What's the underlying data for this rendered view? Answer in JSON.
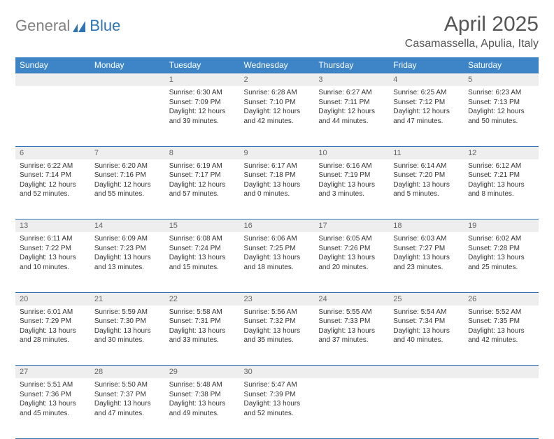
{
  "logo": {
    "gray": "General",
    "blue": "Blue"
  },
  "title": "April 2025",
  "location": "Casamassella, Apulia, Italy",
  "colors": {
    "header_bg": "#3d85c6",
    "header_border": "#2e74b5",
    "daynum_bg": "#eeeeee",
    "text": "#333333"
  },
  "day_headers": [
    "Sunday",
    "Monday",
    "Tuesday",
    "Wednesday",
    "Thursday",
    "Friday",
    "Saturday"
  ],
  "weeks": [
    {
      "nums": [
        "",
        "",
        "1",
        "2",
        "3",
        "4",
        "5"
      ],
      "cells": [
        null,
        null,
        {
          "sunrise": "Sunrise: 6:30 AM",
          "sunset": "Sunset: 7:09 PM",
          "daylight": "Daylight: 12 hours and 39 minutes."
        },
        {
          "sunrise": "Sunrise: 6:28 AM",
          "sunset": "Sunset: 7:10 PM",
          "daylight": "Daylight: 12 hours and 42 minutes."
        },
        {
          "sunrise": "Sunrise: 6:27 AM",
          "sunset": "Sunset: 7:11 PM",
          "daylight": "Daylight: 12 hours and 44 minutes."
        },
        {
          "sunrise": "Sunrise: 6:25 AM",
          "sunset": "Sunset: 7:12 PM",
          "daylight": "Daylight: 12 hours and 47 minutes."
        },
        {
          "sunrise": "Sunrise: 6:23 AM",
          "sunset": "Sunset: 7:13 PM",
          "daylight": "Daylight: 12 hours and 50 minutes."
        }
      ]
    },
    {
      "nums": [
        "6",
        "7",
        "8",
        "9",
        "10",
        "11",
        "12"
      ],
      "cells": [
        {
          "sunrise": "Sunrise: 6:22 AM",
          "sunset": "Sunset: 7:14 PM",
          "daylight": "Daylight: 12 hours and 52 minutes."
        },
        {
          "sunrise": "Sunrise: 6:20 AM",
          "sunset": "Sunset: 7:16 PM",
          "daylight": "Daylight: 12 hours and 55 minutes."
        },
        {
          "sunrise": "Sunrise: 6:19 AM",
          "sunset": "Sunset: 7:17 PM",
          "daylight": "Daylight: 12 hours and 57 minutes."
        },
        {
          "sunrise": "Sunrise: 6:17 AM",
          "sunset": "Sunset: 7:18 PM",
          "daylight": "Daylight: 13 hours and 0 minutes."
        },
        {
          "sunrise": "Sunrise: 6:16 AM",
          "sunset": "Sunset: 7:19 PM",
          "daylight": "Daylight: 13 hours and 3 minutes."
        },
        {
          "sunrise": "Sunrise: 6:14 AM",
          "sunset": "Sunset: 7:20 PM",
          "daylight": "Daylight: 13 hours and 5 minutes."
        },
        {
          "sunrise": "Sunrise: 6:12 AM",
          "sunset": "Sunset: 7:21 PM",
          "daylight": "Daylight: 13 hours and 8 minutes."
        }
      ]
    },
    {
      "nums": [
        "13",
        "14",
        "15",
        "16",
        "17",
        "18",
        "19"
      ],
      "cells": [
        {
          "sunrise": "Sunrise: 6:11 AM",
          "sunset": "Sunset: 7:22 PM",
          "daylight": "Daylight: 13 hours and 10 minutes."
        },
        {
          "sunrise": "Sunrise: 6:09 AM",
          "sunset": "Sunset: 7:23 PM",
          "daylight": "Daylight: 13 hours and 13 minutes."
        },
        {
          "sunrise": "Sunrise: 6:08 AM",
          "sunset": "Sunset: 7:24 PM",
          "daylight": "Daylight: 13 hours and 15 minutes."
        },
        {
          "sunrise": "Sunrise: 6:06 AM",
          "sunset": "Sunset: 7:25 PM",
          "daylight": "Daylight: 13 hours and 18 minutes."
        },
        {
          "sunrise": "Sunrise: 6:05 AM",
          "sunset": "Sunset: 7:26 PM",
          "daylight": "Daylight: 13 hours and 20 minutes."
        },
        {
          "sunrise": "Sunrise: 6:03 AM",
          "sunset": "Sunset: 7:27 PM",
          "daylight": "Daylight: 13 hours and 23 minutes."
        },
        {
          "sunrise": "Sunrise: 6:02 AM",
          "sunset": "Sunset: 7:28 PM",
          "daylight": "Daylight: 13 hours and 25 minutes."
        }
      ]
    },
    {
      "nums": [
        "20",
        "21",
        "22",
        "23",
        "24",
        "25",
        "26"
      ],
      "cells": [
        {
          "sunrise": "Sunrise: 6:01 AM",
          "sunset": "Sunset: 7:29 PM",
          "daylight": "Daylight: 13 hours and 28 minutes."
        },
        {
          "sunrise": "Sunrise: 5:59 AM",
          "sunset": "Sunset: 7:30 PM",
          "daylight": "Daylight: 13 hours and 30 minutes."
        },
        {
          "sunrise": "Sunrise: 5:58 AM",
          "sunset": "Sunset: 7:31 PM",
          "daylight": "Daylight: 13 hours and 33 minutes."
        },
        {
          "sunrise": "Sunrise: 5:56 AM",
          "sunset": "Sunset: 7:32 PM",
          "daylight": "Daylight: 13 hours and 35 minutes."
        },
        {
          "sunrise": "Sunrise: 5:55 AM",
          "sunset": "Sunset: 7:33 PM",
          "daylight": "Daylight: 13 hours and 37 minutes."
        },
        {
          "sunrise": "Sunrise: 5:54 AM",
          "sunset": "Sunset: 7:34 PM",
          "daylight": "Daylight: 13 hours and 40 minutes."
        },
        {
          "sunrise": "Sunrise: 5:52 AM",
          "sunset": "Sunset: 7:35 PM",
          "daylight": "Daylight: 13 hours and 42 minutes."
        }
      ]
    },
    {
      "nums": [
        "27",
        "28",
        "29",
        "30",
        "",
        "",
        ""
      ],
      "cells": [
        {
          "sunrise": "Sunrise: 5:51 AM",
          "sunset": "Sunset: 7:36 PM",
          "daylight": "Daylight: 13 hours and 45 minutes."
        },
        {
          "sunrise": "Sunrise: 5:50 AM",
          "sunset": "Sunset: 7:37 PM",
          "daylight": "Daylight: 13 hours and 47 minutes."
        },
        {
          "sunrise": "Sunrise: 5:48 AM",
          "sunset": "Sunset: 7:38 PM",
          "daylight": "Daylight: 13 hours and 49 minutes."
        },
        {
          "sunrise": "Sunrise: 5:47 AM",
          "sunset": "Sunset: 7:39 PM",
          "daylight": "Daylight: 13 hours and 52 minutes."
        },
        null,
        null,
        null
      ]
    }
  ]
}
